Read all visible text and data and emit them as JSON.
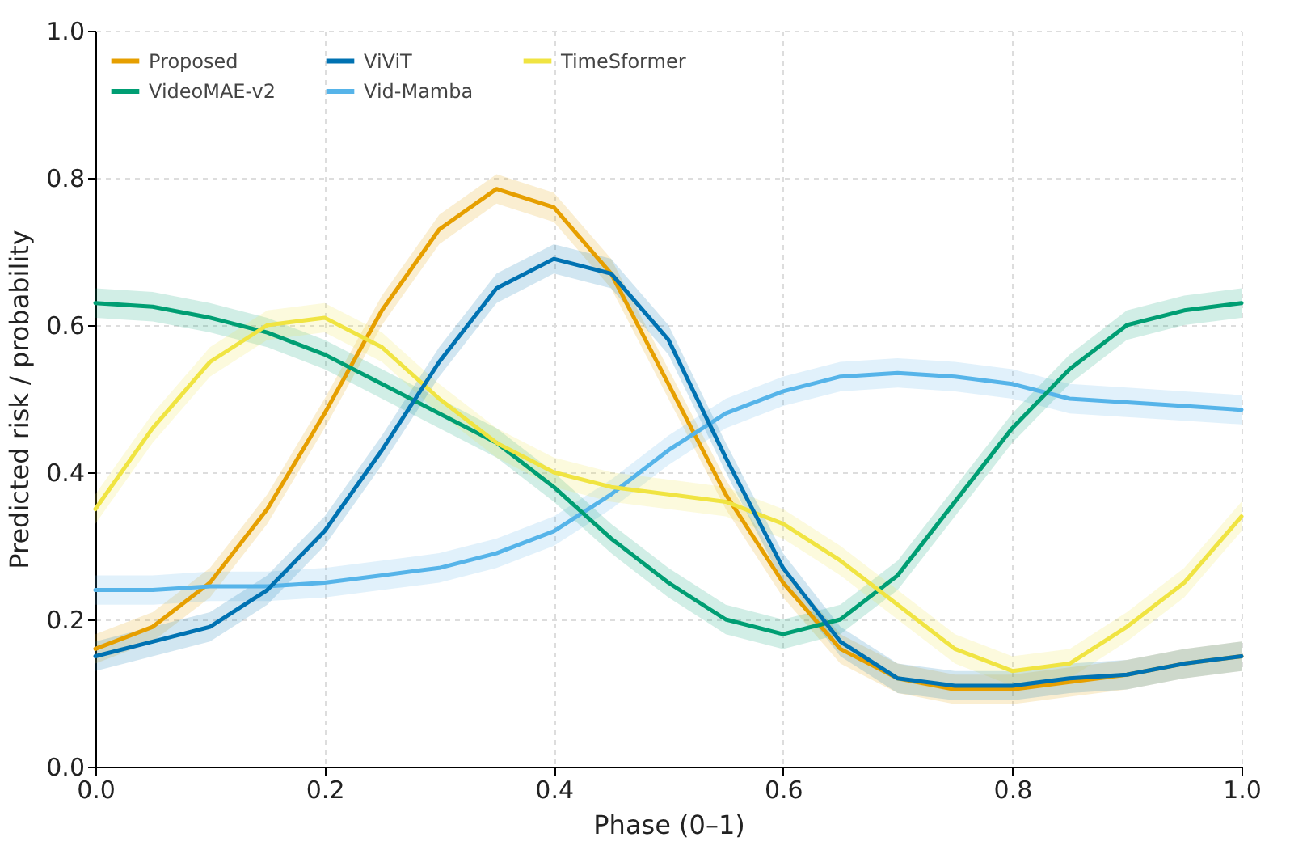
{
  "chart_data": {
    "type": "line",
    "xlabel": "Phase (0–1)",
    "ylabel": "Predicted risk / probability",
    "x": [
      0,
      0.05,
      0.1,
      0.15,
      0.2,
      0.25,
      0.3,
      0.35,
      0.4,
      0.45,
      0.5,
      0.55,
      0.6,
      0.65,
      0.7,
      0.75,
      0.8,
      0.85,
      0.9,
      0.95,
      1
    ],
    "xlim": [
      0,
      1
    ],
    "ylim": [
      0,
      1
    ],
    "xticks": [
      {
        "value": 0,
        "label": "0.0"
      },
      {
        "value": 0.2,
        "label": "0.2"
      },
      {
        "value": 0.4,
        "label": "0.4"
      },
      {
        "value": 0.6,
        "label": "0.6"
      },
      {
        "value": 0.8,
        "label": "0.8"
      },
      {
        "value": 1,
        "label": "1.0"
      }
    ],
    "yticks": [
      {
        "value": 0,
        "label": "0.0"
      },
      {
        "value": 0.2,
        "label": "0.2"
      },
      {
        "value": 0.4,
        "label": "0.4"
      },
      {
        "value": 0.6,
        "label": "0.6"
      },
      {
        "value": 0.8,
        "label": "0.8"
      },
      {
        "value": 1,
        "label": "1.0"
      }
    ],
    "grid": true,
    "legend": "top left",
    "line_style": "solid",
    "marker": "none",
    "series": [
      {
        "name": "Proposed",
        "color": "#e69f00",
        "values": [
          0.16,
          0.19,
          0.25,
          0.35,
          0.48,
          0.62,
          0.73,
          0.785,
          0.76,
          0.67,
          0.52,
          0.37,
          0.25,
          0.16,
          0.12,
          0.105,
          0.105,
          0.115,
          0.125,
          0.14,
          0.15
        ],
        "lower": [
          0.14,
          0.17,
          0.23,
          0.33,
          0.46,
          0.6,
          0.71,
          0.765,
          0.74,
          0.65,
          0.5,
          0.35,
          0.23,
          0.14,
          0.1,
          0.085,
          0.085,
          0.095,
          0.105,
          0.12,
          0.13
        ],
        "upper": [
          0.18,
          0.21,
          0.27,
          0.37,
          0.5,
          0.64,
          0.75,
          0.805,
          0.78,
          0.69,
          0.54,
          0.39,
          0.27,
          0.18,
          0.14,
          0.125,
          0.125,
          0.135,
          0.145,
          0.16,
          0.17
        ]
      },
      {
        "name": "Vid-Mamba",
        "color": "#56b4e9",
        "values": [
          0.24,
          0.24,
          0.245,
          0.245,
          0.25,
          0.26,
          0.27,
          0.29,
          0.32,
          0.37,
          0.43,
          0.48,
          0.51,
          0.53,
          0.535,
          0.53,
          0.52,
          0.5,
          0.495,
          0.49,
          0.485
        ],
        "lower": [
          0.22,
          0.22,
          0.225,
          0.225,
          0.23,
          0.24,
          0.25,
          0.27,
          0.3,
          0.35,
          0.41,
          0.46,
          0.49,
          0.51,
          0.515,
          0.51,
          0.5,
          0.48,
          0.475,
          0.47,
          0.465
        ],
        "upper": [
          0.26,
          0.26,
          0.265,
          0.265,
          0.27,
          0.28,
          0.29,
          0.31,
          0.34,
          0.39,
          0.45,
          0.5,
          0.53,
          0.55,
          0.555,
          0.55,
          0.54,
          0.52,
          0.515,
          0.51,
          0.505
        ]
      },
      {
        "name": "VideoMAE-v2",
        "color": "#009e73",
        "values": [
          0.63,
          0.625,
          0.61,
          0.59,
          0.56,
          0.52,
          0.48,
          0.44,
          0.38,
          0.31,
          0.25,
          0.2,
          0.18,
          0.2,
          0.26,
          0.36,
          0.46,
          0.54,
          0.6,
          0.62,
          0.63
        ],
        "lower": [
          0.61,
          0.605,
          0.59,
          0.57,
          0.54,
          0.5,
          0.46,
          0.42,
          0.36,
          0.29,
          0.23,
          0.18,
          0.16,
          0.18,
          0.24,
          0.34,
          0.44,
          0.52,
          0.58,
          0.6,
          0.61
        ],
        "upper": [
          0.65,
          0.645,
          0.63,
          0.61,
          0.58,
          0.54,
          0.5,
          0.46,
          0.4,
          0.33,
          0.27,
          0.22,
          0.2,
          0.22,
          0.28,
          0.38,
          0.48,
          0.56,
          0.62,
          0.64,
          0.65
        ]
      },
      {
        "name": "TimeSformer",
        "color": "#f0e442",
        "values": [
          0.35,
          0.46,
          0.55,
          0.6,
          0.61,
          0.57,
          0.5,
          0.44,
          0.4,
          0.38,
          0.37,
          0.36,
          0.33,
          0.28,
          0.22,
          0.16,
          0.13,
          0.14,
          0.19,
          0.25,
          0.34
        ],
        "lower": [
          0.33,
          0.44,
          0.53,
          0.58,
          0.59,
          0.55,
          0.48,
          0.42,
          0.38,
          0.36,
          0.35,
          0.34,
          0.31,
          0.26,
          0.2,
          0.14,
          0.11,
          0.12,
          0.17,
          0.23,
          0.32
        ],
        "upper": [
          0.37,
          0.48,
          0.57,
          0.62,
          0.63,
          0.59,
          0.52,
          0.46,
          0.42,
          0.4,
          0.39,
          0.38,
          0.35,
          0.3,
          0.24,
          0.18,
          0.15,
          0.16,
          0.21,
          0.27,
          0.36
        ]
      },
      {
        "name": "ViViT",
        "color": "#0072b2",
        "values": [
          0.15,
          0.17,
          0.19,
          0.24,
          0.32,
          0.43,
          0.55,
          0.65,
          0.69,
          0.67,
          0.58,
          0.42,
          0.27,
          0.17,
          0.12,
          0.11,
          0.11,
          0.12,
          0.125,
          0.14,
          0.15
        ],
        "lower": [
          0.13,
          0.15,
          0.17,
          0.22,
          0.3,
          0.41,
          0.53,
          0.63,
          0.67,
          0.65,
          0.56,
          0.4,
          0.25,
          0.15,
          0.1,
          0.09,
          0.09,
          0.1,
          0.105,
          0.12,
          0.13
        ],
        "upper": [
          0.17,
          0.19,
          0.21,
          0.26,
          0.34,
          0.45,
          0.57,
          0.67,
          0.71,
          0.69,
          0.6,
          0.44,
          0.29,
          0.19,
          0.14,
          0.13,
          0.13,
          0.14,
          0.145,
          0.16,
          0.17
        ]
      }
    ]
  }
}
